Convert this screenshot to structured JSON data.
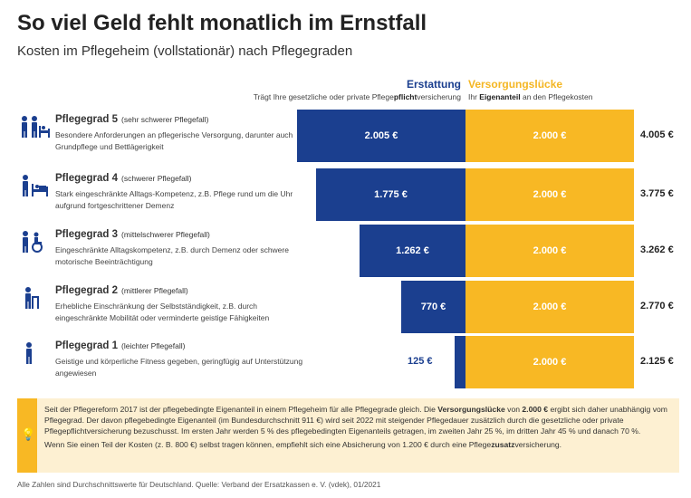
{
  "title": "So viel Geld fehlt monatlich im Ernstfall",
  "subtitle": "Kosten im Pflegeheim (vollstationär) nach Pflegegraden",
  "header": {
    "left_title": "Erstattung",
    "left_sub_pre": "Trägt Ihre gesetzliche oder private Pflege",
    "left_sub_bold": "pflicht",
    "left_sub_post": "versicherung",
    "right_title": "Versorgungslücke",
    "right_sub_pre": "Ihr ",
    "right_sub_bold": "Eigenanteil",
    "right_sub_post": " an den Pflegekosten"
  },
  "rows": [
    {
      "title": "Pflegegrad 5",
      "note": "(sehr schwerer Pflegefall)",
      "desc": "Besondere Anforderungen an pflegerische Versorgung, darunter auch Grundpflege und Bettlägerigkeit",
      "icon": "care-bed-icon",
      "erstattung_label": "2.005 €",
      "luecke_label": "2.000 €",
      "total": "4.005 €"
    },
    {
      "title": "Pflegegrad 4",
      "note": "(schwerer Pflegefall)",
      "desc": "Stark eingeschränkte Alltags-Kompetenz, z.B. Pflege rund um die Uhr aufgrund fortgeschrittener Demenz",
      "icon": "person-bed-icon",
      "erstattung_label": "1.775 €",
      "luecke_label": "2.000 €",
      "total": "3.775 €"
    },
    {
      "title": "Pflegegrad 3",
      "note": "(mittelschwerer Pflegefall)",
      "desc": "Eingeschränkte Alltagskompetenz, z.B. durch Demenz oder schwere motorische Beeinträchtigung",
      "icon": "wheelchair-icon",
      "erstattung_label": "1.262 €",
      "luecke_label": "2.000 €",
      "total": "3.262 €"
    },
    {
      "title": "Pflegegrad 2",
      "note": "(mittlerer Pflegefall)",
      "desc": "Erhebliche Einschränkung der Selbstständigkeit, z.B. durch eingeschränkte Mobilität oder verminderte geistige Fähigkeiten",
      "icon": "walker-icon",
      "erstattung_label": "770 €",
      "luecke_label": "2.000 €",
      "total": "2.770 €"
    },
    {
      "title": "Pflegegrad 1",
      "note": "(leichter Pflegefall)",
      "desc": "Geistige und körperliche Fitness gegeben, geringfügig auf Unterstützung angewiesen",
      "icon": "person-icon",
      "erstattung_label": "125 €",
      "luecke_label": "2.000 €",
      "total": "2.125 €"
    }
  ],
  "chart_data": {
    "type": "bar",
    "categories": [
      "Pflegegrad 5",
      "Pflegegrad 4",
      "Pflegegrad 3",
      "Pflegegrad 2",
      "Pflegegrad 1"
    ],
    "series": [
      {
        "name": "Erstattung",
        "values": [
          2005,
          1775,
          1262,
          770,
          125
        ]
      },
      {
        "name": "Versorgungslücke",
        "values": [
          2000,
          2000,
          2000,
          2000,
          2000
        ]
      }
    ],
    "totals": [
      4005,
      3775,
      3262,
      2770,
      2125
    ]
  },
  "colors": {
    "blue": "#1b3f8f",
    "yellow": "#f8b824",
    "infobox_bg": "#fdf0d2"
  },
  "infobox": {
    "icon": "lightbulb-icon",
    "p1_a": "Seit der Pflegereform 2017 ist der pflegebedingte Eigenanteil in einem Pflegeheim für alle Pflegegrade gleich. Die ",
    "p1_b": "Versorgungslücke",
    "p1_c": " von ",
    "p1_d": "2.000 €",
    "p1_e": " ergibt sich daher unabhängig vom Pflegegrad. Der davon pflegebedingte Eigenanteil (im Bundesdurchschnitt 911 €) wird seit 2022 mit steigender Pflegedauer zusätzlich durch die gesetzliche oder private Pflegepflichtversicherung bezuschusst. Im ersten Jahr werden 5 % des pflegebedingten Eigenanteils getragen, im zweiten Jahr 25 %, im dritten Jahr 45 % und danach 70 %.",
    "p2_a": "Wenn Sie einen Teil der Kosten (z. B. 800 €) selbst tragen können, empfiehlt sich eine Absicherung von 1.200 € durch eine Pflege",
    "p2_b": "zusatz",
    "p2_c": "versicherung."
  },
  "footer": "Alle Zahlen sind Durchschnittswerte für Deutschland. Quelle: Verband der Ersatzkassen e. V. (vdek), 01/2021"
}
